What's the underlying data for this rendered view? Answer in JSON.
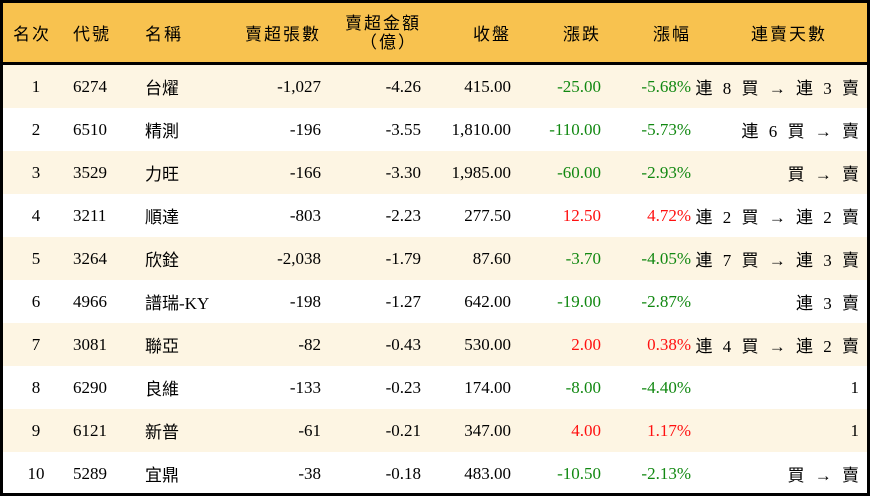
{
  "headers": {
    "rank": "名次",
    "code": "代號",
    "name": "名稱",
    "sell_shares": "賣超張數",
    "sell_amount_1": "賣超金額",
    "sell_amount_2": "（億）",
    "close": "收盤",
    "change": "漲跌",
    "pct": "漲幅",
    "streak": "連賣天數"
  },
  "colors": {
    "header_bg": "#F8C24F",
    "row_alt": "#FDF5E3",
    "up": "#FF1010",
    "down": "#118811"
  },
  "rows": [
    {
      "rank": "1",
      "code": "6274",
      "name": "台燿",
      "sell_shares": "-1,027",
      "sell_amount": "-4.26",
      "close": "415.00",
      "change": "-25.00",
      "pct": "-5.68%",
      "dir": "down",
      "streak": "連 8 買 → 連 3 賣"
    },
    {
      "rank": "2",
      "code": "6510",
      "name": "精測",
      "sell_shares": "-196",
      "sell_amount": "-3.55",
      "close": "1,810.00",
      "change": "-110.00",
      "pct": "-5.73%",
      "dir": "down",
      "streak": "連 6 買 → 賣"
    },
    {
      "rank": "3",
      "code": "3529",
      "name": "力旺",
      "sell_shares": "-166",
      "sell_amount": "-3.30",
      "close": "1,985.00",
      "change": "-60.00",
      "pct": "-2.93%",
      "dir": "down",
      "streak": "買 → 賣"
    },
    {
      "rank": "4",
      "code": "3211",
      "name": "順達",
      "sell_shares": "-803",
      "sell_amount": "-2.23",
      "close": "277.50",
      "change": "12.50",
      "pct": "4.72%",
      "dir": "up",
      "streak": "連 2 買 → 連 2 賣"
    },
    {
      "rank": "5",
      "code": "3264",
      "name": "欣銓",
      "sell_shares": "-2,038",
      "sell_amount": "-1.79",
      "close": "87.60",
      "change": "-3.70",
      "pct": "-4.05%",
      "dir": "down",
      "streak": "連 7 買 → 連 3 賣"
    },
    {
      "rank": "6",
      "code": "4966",
      "name": "譜瑞-KY",
      "sell_shares": "-198",
      "sell_amount": "-1.27",
      "close": "642.00",
      "change": "-19.00",
      "pct": "-2.87%",
      "dir": "down",
      "streak": "連 3 賣"
    },
    {
      "rank": "7",
      "code": "3081",
      "name": "聯亞",
      "sell_shares": "-82",
      "sell_amount": "-0.43",
      "close": "530.00",
      "change": "2.00",
      "pct": "0.38%",
      "dir": "up",
      "streak": "連 4 買 → 連 2 賣"
    },
    {
      "rank": "8",
      "code": "6290",
      "name": "良維",
      "sell_shares": "-133",
      "sell_amount": "-0.23",
      "close": "174.00",
      "change": "-8.00",
      "pct": "-4.40%",
      "dir": "down",
      "streak": "1"
    },
    {
      "rank": "9",
      "code": "6121",
      "name": "新普",
      "sell_shares": "-61",
      "sell_amount": "-0.21",
      "close": "347.00",
      "change": "4.00",
      "pct": "1.17%",
      "dir": "up",
      "streak": "1"
    },
    {
      "rank": "10",
      "code": "5289",
      "name": "宜鼎",
      "sell_shares": "-38",
      "sell_amount": "-0.18",
      "close": "483.00",
      "change": "-10.50",
      "pct": "-2.13%",
      "dir": "down",
      "streak": "買 → 賣"
    }
  ]
}
